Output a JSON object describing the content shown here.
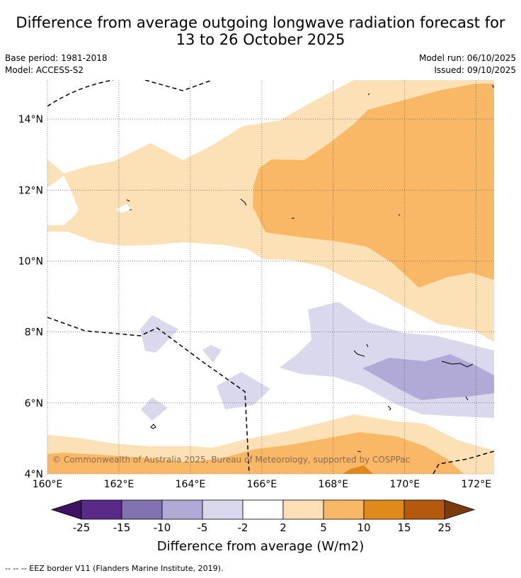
{
  "header": {
    "title_line1": "Difference from average outgoing longwave radiation forecast for",
    "title_line2": "13 to 26 October 2025",
    "base_period": "Base period: 1981-2018",
    "model": "Model: ACCESS-S2",
    "model_run": "Model run: 06/10/2025",
    "issued": "Issued: 09/10/2025"
  },
  "map": {
    "x_ticks": [
      "160°E",
      "162°E",
      "164°E",
      "166°E",
      "168°E",
      "170°E",
      "172°E"
    ],
    "y_ticks": [
      "14°N",
      "12°N",
      "10°N",
      "8°N",
      "6°N",
      "4°N"
    ],
    "lon_range": [
      160,
      172.5
    ],
    "lat_range": [
      4,
      15.1
    ],
    "copyright": "© Commonwealth of Australia 2025, Bureau of Meteorology, supported by COSPPac"
  },
  "colorbar": {
    "ticks": [
      "-25",
      "-15",
      "-10",
      "-5",
      "-2",
      "2",
      "5",
      "10",
      "15",
      "25"
    ],
    "colors": [
      "#3b1361",
      "#5a2a8a",
      "#8372b1",
      "#b2aad6",
      "#d9d8ec",
      "#ffffff",
      "#fce0b6",
      "#f9b866",
      "#e08a1c",
      "#b55a0c",
      "#7a3a0c"
    ],
    "label": "Difference from average (W/m2)"
  },
  "footer": {
    "legend_text": "--  --  -- EEZ border V11 (Flanders Marine Institute, 2019)."
  }
}
